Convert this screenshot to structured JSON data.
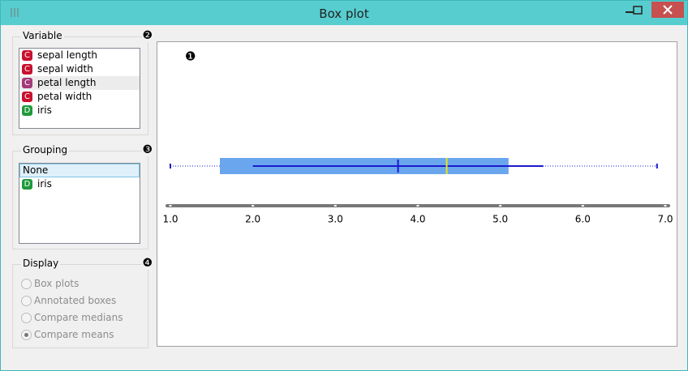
{
  "window": {
    "title": "Box plot"
  },
  "variable": {
    "label": "Variable",
    "badge": "❷",
    "selected": 2,
    "items": [
      {
        "type": "C",
        "name": "sepal length"
      },
      {
        "type": "C",
        "name": "sepal width"
      },
      {
        "type": "C",
        "name": "petal length"
      },
      {
        "type": "C",
        "name": "petal width"
      },
      {
        "type": "D",
        "name": "iris"
      }
    ]
  },
  "grouping": {
    "label": "Grouping",
    "badge": "❸",
    "selected": 0,
    "items": [
      {
        "name": "None"
      },
      {
        "type": "D",
        "name": "iris"
      }
    ]
  },
  "display": {
    "label": "Display",
    "badge": "❹",
    "selected": 3,
    "options": [
      "Box plots",
      "Annotated boxes",
      "Compare medians",
      "Compare means"
    ]
  },
  "plot": {
    "badge": "❶",
    "min": 1.0,
    "q1": 1.6,
    "median": 4.35,
    "q3": 5.1,
    "max": 6.9,
    "mean": 3.76,
    "sd": 1.76,
    "box_color": "#6aa6ee",
    "line_color": "#1a1acc",
    "median_color": "#e6e619",
    "xlim": [
      1,
      7
    ],
    "xticks": [
      {
        "value": 1,
        "label": "1.0"
      },
      {
        "value": 2,
        "label": "2.0"
      },
      {
        "value": 3,
        "label": "3.0"
      },
      {
        "value": 4,
        "label": "4.0"
      },
      {
        "value": 5,
        "label": "5.0"
      },
      {
        "value": 6,
        "label": "6.0"
      },
      {
        "value": 7,
        "label": "7.0"
      }
    ]
  }
}
